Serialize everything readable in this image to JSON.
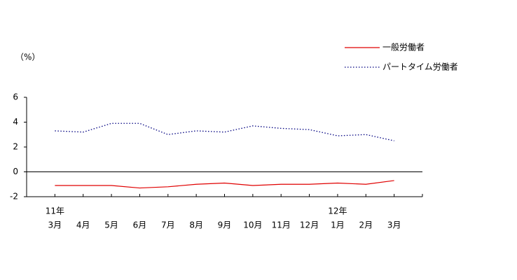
{
  "chart_data": {
    "type": "line",
    "y_axis_label": "（%）",
    "categories": [
      "3月",
      "4月",
      "5月",
      "6月",
      "7月",
      "8月",
      "9月",
      "10月",
      "11月",
      "12月",
      "1月",
      "2月",
      "3月"
    ],
    "year_labels": [
      "11年",
      null,
      null,
      null,
      null,
      null,
      null,
      null,
      null,
      null,
      "12年",
      null,
      null
    ],
    "series": [
      {
        "name": "一般労働者",
        "color": "#e00000",
        "style": "solid",
        "values": [
          -1.1,
          -1.1,
          -1.1,
          -1.3,
          -1.2,
          -1.0,
          -0.9,
          -1.1,
          -1.0,
          -1.0,
          -0.9,
          -1.0,
          -0.7
        ]
      },
      {
        "name": "パートタイム労働者",
        "color": "#000080",
        "style": "dotted",
        "values": [
          3.3,
          3.2,
          3.9,
          3.9,
          3.0,
          3.3,
          3.2,
          3.7,
          3.5,
          3.4,
          2.9,
          3.0,
          2.5
        ]
      }
    ],
    "ylim": [
      -2,
      6
    ],
    "yticks": [
      -2,
      0,
      2,
      4,
      6
    ],
    "zero_line": true,
    "legend": "top-right"
  }
}
